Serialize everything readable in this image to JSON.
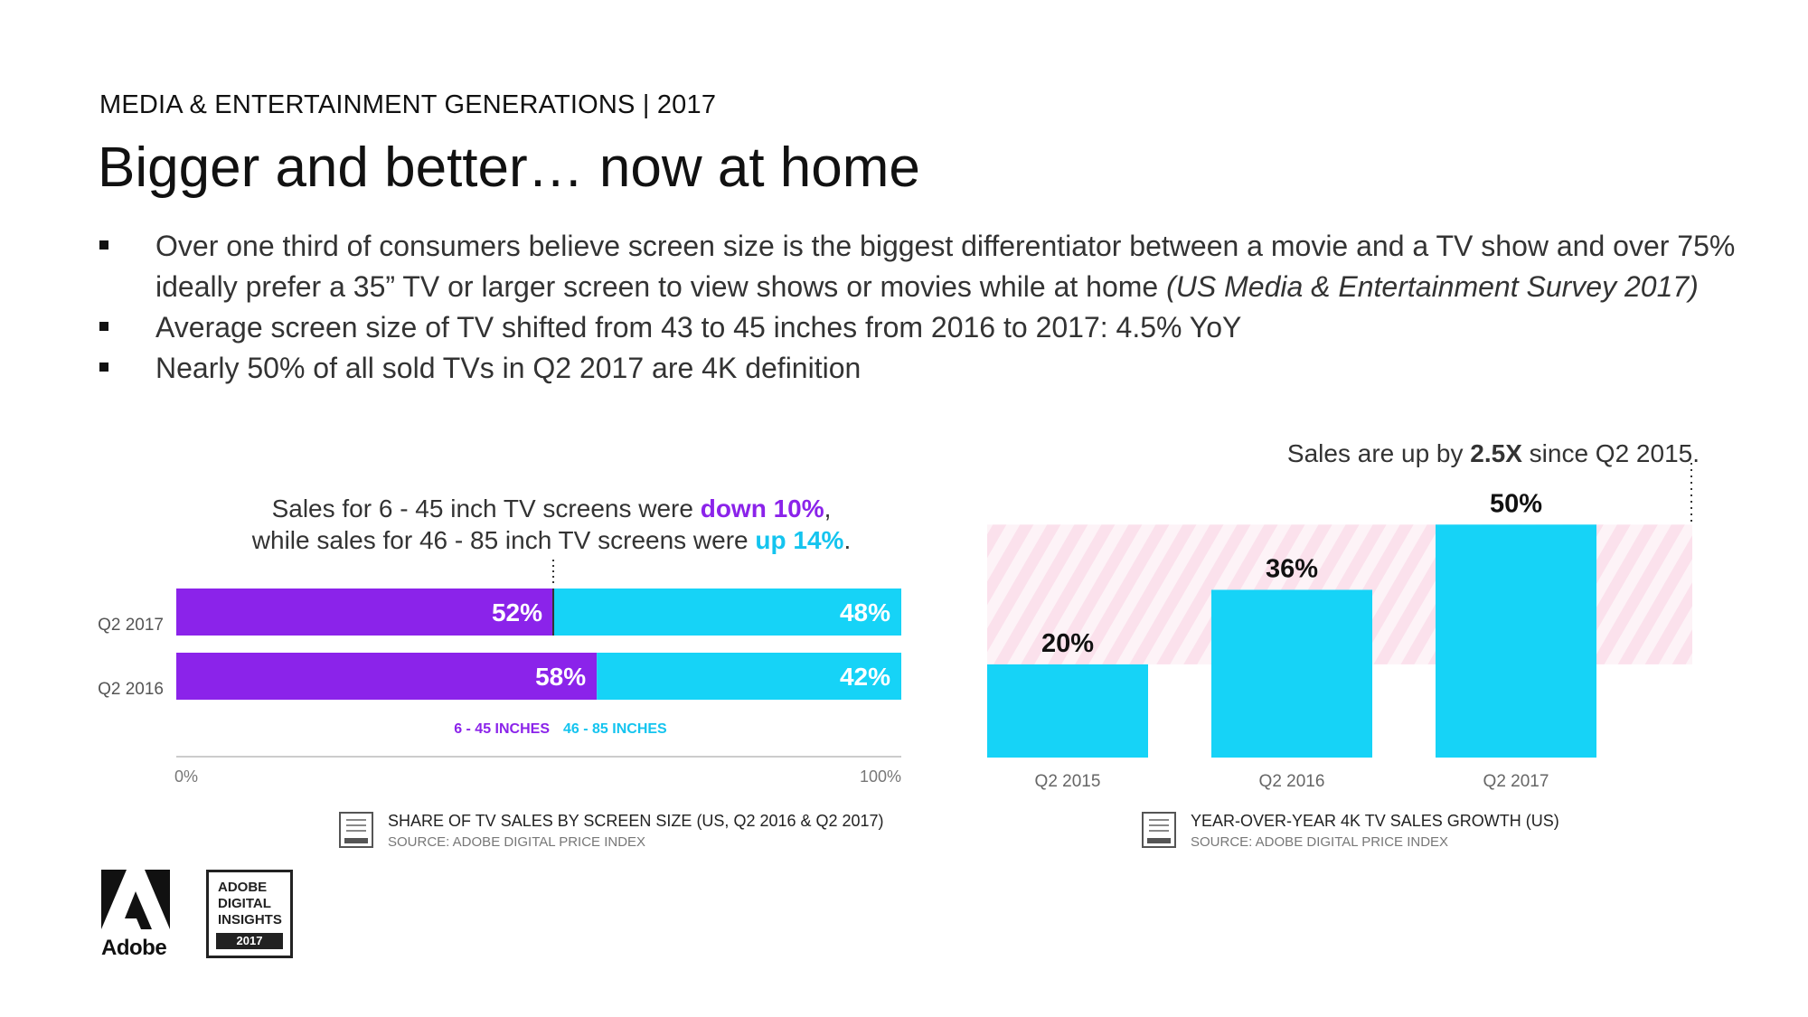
{
  "header": {
    "eyebrow": "MEDIA & ENTERTAINMENT GENERATIONS | 2017",
    "title": "Bigger and better… now at home"
  },
  "bullets": [
    {
      "text": "Over one third of consumers believe screen size is the biggest differentiator between a movie and a TV show and over 75% ideally prefer a 35” TV or larger screen to view shows or movies while at home ",
      "italic": "(US Media & Entertainment Survey 2017)"
    },
    {
      "text": "Average screen size of TV shifted from 43 to 45 inches from 2016 to 2017: 4.5% YoY",
      "italic": ""
    },
    {
      "text": "Nearly 50% of all sold TVs in Q2 2017 are 4K definition",
      "italic": ""
    }
  ],
  "left_note": {
    "line1_pre": "Sales for 6 - 45 inch TV screens were ",
    "line1_em": "down 10%",
    "line1_post": ",",
    "line2_pre": "while sales for 46 - 85 inch TV screens were ",
    "line2_em": "up 14%",
    "line2_post": "."
  },
  "right_note": {
    "pre": "Sales are up by ",
    "em": "2.5X",
    "post": " since Q2 2015."
  },
  "colors": {
    "purple": "#8b23ea",
    "cyan": "#16d3f7",
    "hatch": "#fbe3ee"
  },
  "chart_data": [
    {
      "type": "bar",
      "orientation": "horizontal-stacked",
      "categories": [
        "Q2 2017",
        "Q2 2016"
      ],
      "series": [
        {
          "name": "6 - 45 INCHES",
          "values": [
            52,
            58
          ],
          "labels": [
            "52%",
            "58%"
          ]
        },
        {
          "name": "46 - 85 INCHES",
          "values": [
            48,
            42
          ],
          "labels": [
            "48%",
            "42%"
          ]
        }
      ],
      "xlim": [
        0,
        100
      ],
      "xticks": [
        "0%",
        "100%"
      ],
      "legend": "bottom",
      "caption": "SHARE OF TV SALES BY SCREEN SIZE (US, Q2 2016 & Q2 2017)",
      "source": "SOURCE: ADOBE DIGITAL PRICE INDEX"
    },
    {
      "type": "bar",
      "categories": [
        "Q2 2015",
        "Q2 2016",
        "Q2 2017"
      ],
      "values": [
        20,
        36,
        50
      ],
      "labels": [
        "20%",
        "36%",
        "50%"
      ],
      "ylim": [
        0,
        52
      ],
      "caption": "YEAR-OVER-YEAR 4K TV SALES GROWTH (US)",
      "source": "SOURCE: ADOBE DIGITAL PRICE INDEX"
    }
  ],
  "footer": {
    "brand": "Adobe",
    "badge_lines": [
      "ADOBE",
      "DIGITAL",
      "INSIGHTS"
    ],
    "badge_year": "2017",
    "mini_badge": [
      "ADOBE",
      "DIGITAL",
      "INSIGHTS",
      "2017"
    ]
  }
}
